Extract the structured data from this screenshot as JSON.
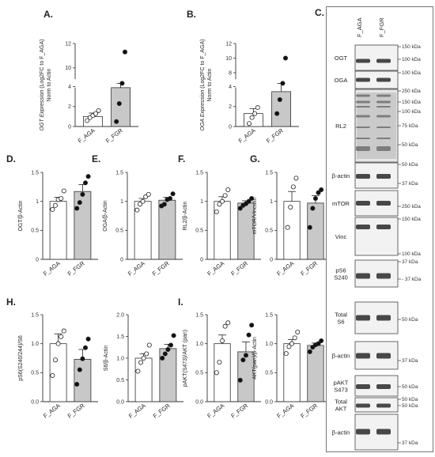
{
  "panel_letters": [
    "A.",
    "B.",
    "C.",
    "D.",
    "E.",
    "F.",
    "G.",
    "H.",
    "I."
  ],
  "chart_data": [
    {
      "id": "A",
      "type": "bar",
      "categories": [
        "F_AGA",
        "F_FGR"
      ],
      "ylabel": "OGT Expression (Log2FC to F_AGA) Norm to Actin",
      "yticks": [
        0,
        2,
        4,
        6,
        8,
        10,
        12
      ],
      "axis_break": [
        4,
        9
      ],
      "ylim": [
        0,
        12
      ],
      "series": [
        {
          "values": [
            1.0,
            3.9
          ],
          "err": [
            0.35,
            1.9
          ],
          "points": [
            [
              0.6,
              0.9,
              1.1,
              1.3,
              1.6
            ],
            [
              0.5,
              2.3,
              4.3,
              11.3
            ]
          ]
        }
      ]
    },
    {
      "id": "B",
      "type": "bar",
      "categories": [
        "F_AGA",
        "F_FGR"
      ],
      "ylabel": "OGA Expression (Log2FC to F_AGA) Norm to Actin",
      "yticks": [
        0,
        2,
        4,
        6,
        8,
        10,
        12
      ],
      "axis_break": [
        4,
        7
      ],
      "ylim": [
        0,
        12
      ],
      "series": [
        {
          "values": [
            1.3,
            3.5
          ],
          "err": [
            0.5,
            1.7
          ],
          "points": [
            [
              0.3,
              0.9,
              1.3,
              1.9
            ],
            [
              1.3,
              2.7,
              4.3,
              10.0
            ]
          ]
        }
      ]
    },
    {
      "id": "D",
      "type": "bar",
      "categories": [
        "F_AGA",
        "F_FGR"
      ],
      "ylabel": "OGT/β-Actin",
      "ylim": [
        0,
        1.5
      ],
      "yticks": [
        0,
        0.5,
        1.0,
        1.5
      ],
      "series": [
        {
          "values": [
            1.0,
            1.17
          ],
          "err": [
            0.07,
            0.12
          ],
          "points": [
            [
              0.86,
              0.93,
              1.03,
              1.05,
              1.18
            ],
            [
              0.88,
              0.98,
              1.12,
              1.32,
              1.43
            ]
          ]
        }
      ]
    },
    {
      "id": "E",
      "type": "bar",
      "categories": [
        "F_AGA",
        "F_FGR"
      ],
      "ylabel": "OGA/β-Actin",
      "ylim": [
        0,
        1.5
      ],
      "yticks": [
        0,
        0.5,
        1.0,
        1.5
      ],
      "series": [
        {
          "values": [
            1.0,
            1.02
          ],
          "err": [
            0.05,
            0.05
          ],
          "points": [
            [
              0.85,
              0.95,
              1.0,
              1.08,
              1.12
            ],
            [
              0.92,
              0.95,
              1.03,
              1.05,
              1.13
            ]
          ]
        }
      ]
    },
    {
      "id": "F",
      "type": "bar",
      "categories": [
        "F_AGA",
        "F_FGR"
      ],
      "ylabel": "RL2/β-Actin",
      "ylim": [
        0,
        1.5
      ],
      "yticks": [
        0,
        0.5,
        1.0,
        1.5
      ],
      "series": [
        {
          "values": [
            1.0,
            0.97
          ],
          "err": [
            0.08,
            0.04
          ],
          "points": [
            [
              0.82,
              0.95,
              1.0,
              1.1,
              1.2
            ],
            [
              0.88,
              0.93,
              0.96,
              1.0,
              1.05
            ]
          ]
        }
      ]
    },
    {
      "id": "G",
      "type": "bar",
      "categories": [
        "F_AGA",
        "F_FGR"
      ],
      "ylabel": "mTOR/Vinculin",
      "ylim": [
        0,
        1.5
      ],
      "yticks": [
        0,
        0.5,
        1.0,
        1.5
      ],
      "series": [
        {
          "values": [
            1.0,
            0.97
          ],
          "err": [
            0.17,
            0.13
          ],
          "points": [
            [
              0.55,
              0.9,
              1.25,
              1.4
            ],
            [
              0.55,
              0.88,
              1.05,
              1.15,
              1.2
            ]
          ]
        }
      ]
    },
    {
      "id": "H1",
      "type": "bar",
      "categories": [
        "F_AGA",
        "F_FGR"
      ],
      "ylabel": "pS6(S240/244)/S6",
      "ylim": [
        0,
        1.5
      ],
      "yticks": [
        0.0,
        0.5,
        1.0,
        1.5
      ],
      "series": [
        {
          "values": [
            1.0,
            0.73
          ],
          "err": [
            0.17,
            0.17
          ],
          "points": [
            [
              0.45,
              0.72,
              1.0,
              1.12,
              1.22
            ],
            [
              0.3,
              0.55,
              0.74,
              0.93,
              1.08
            ]
          ]
        }
      ]
    },
    {
      "id": "H2",
      "type": "bar",
      "categories": [
        "F_AGA",
        "F_FGR"
      ],
      "ylabel": "S6/β-Actin",
      "ylim": [
        0,
        2.0
      ],
      "yticks": [
        0.0,
        0.5,
        1.0,
        1.5,
        2.0
      ],
      "series": [
        {
          "values": [
            1.0,
            1.22
          ],
          "err": [
            0.1,
            0.1
          ],
          "points": [
            [
              0.7,
              0.9,
              1.0,
              1.1,
              1.3
            ],
            [
              1.0,
              1.1,
              1.2,
              1.3,
              1.52
            ]
          ]
        }
      ]
    },
    {
      "id": "I1",
      "type": "bar",
      "categories": [
        "F_AGA",
        "F_FGR"
      ],
      "ylabel": "pAKT(S473)/AKT (pan)",
      "ylim": [
        0,
        1.5
      ],
      "yticks": [
        0.0,
        0.5,
        1.0,
        1.5
      ],
      "series": [
        {
          "values": [
            1.0,
            0.86
          ],
          "err": [
            0.15,
            0.17
          ],
          "points": [
            [
              0.5,
              0.68,
              1.05,
              1.3,
              1.36
            ],
            [
              0.37,
              0.72,
              0.8,
              1.15,
              1.32
            ]
          ]
        }
      ]
    },
    {
      "id": "I2",
      "type": "bar",
      "categories": [
        "F_AGA",
        "F_FGR"
      ],
      "ylabel": "AKT(pan)/β-Actin",
      "ylim": [
        0,
        1.5
      ],
      "yticks": [
        0.0,
        0.5,
        1.0,
        1.5
      ],
      "series": [
        {
          "values": [
            1.0,
            0.97
          ],
          "err": [
            0.07,
            0.04
          ],
          "points": [
            [
              0.83,
              0.95,
              1.0,
              1.1,
              1.2
            ],
            [
              0.86,
              0.94,
              0.98,
              1.0,
              1.05
            ]
          ]
        }
      ]
    }
  ],
  "western_blot": {
    "lanes": [
      "F_AGA",
      "F_FGR"
    ],
    "rows": [
      {
        "label": "OGT",
        "markers": [
          "150 kDa",
          "100 kDa"
        ]
      },
      {
        "label": "OGA",
        "markers": [
          "100 kDa"
        ]
      },
      {
        "label": "RL2",
        "markers": [
          "250 kDa",
          "150 kDa",
          "100 kDa",
          "75 kDa",
          "50 kDa"
        ]
      },
      {
        "label": "β-actin",
        "markers": [
          "50 kDa",
          "37 kDa"
        ]
      },
      {
        "label": "mTOR",
        "markers": [
          "250 kDa"
        ]
      },
      {
        "label": "Vinc",
        "markers": [
          "150 kDa",
          "100 kDa"
        ]
      },
      {
        "label": "pS6\nS240",
        "markers": [
          "37 kDa",
          "- 37 kDa"
        ]
      },
      {
        "label": "Total\nS6",
        "markers": [
          "50 kDa"
        ]
      },
      {
        "label": "β-actin",
        "markers": [
          "37 kDa"
        ]
      },
      {
        "label": "pAKT\nS473",
        "markers": [
          "50 kDa"
        ]
      },
      {
        "label": "Total\nAKT",
        "markers": [
          "50 kDa",
          "50 kDa"
        ]
      },
      {
        "label": "β-actin",
        "markers": [
          "37 kDa"
        ]
      }
    ]
  }
}
